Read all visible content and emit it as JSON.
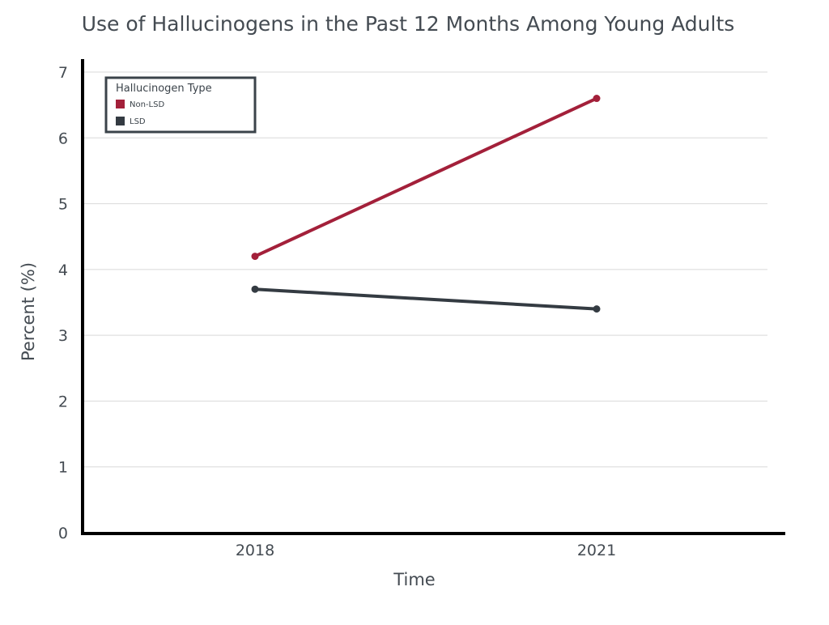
{
  "chart_data": {
    "type": "line",
    "title": "Use of Hallucinogens in the Past 12 Months Among Young Adults",
    "xlabel": "Time",
    "ylabel": "Percent (%)",
    "x": [
      "2018",
      "2021"
    ],
    "ylim": [
      0,
      7
    ],
    "yticks": [
      0,
      1,
      2,
      3,
      4,
      5,
      6,
      7
    ],
    "grid": true,
    "legend": {
      "title": "Hallucinogen Type",
      "placement": "top-left"
    },
    "series": [
      {
        "name": "Non-LSD",
        "color": "#a3203a",
        "values": [
          4.2,
          6.6
        ]
      },
      {
        "name": "LSD",
        "color": "#343b42",
        "values": [
          3.7,
          3.4
        ]
      }
    ]
  }
}
